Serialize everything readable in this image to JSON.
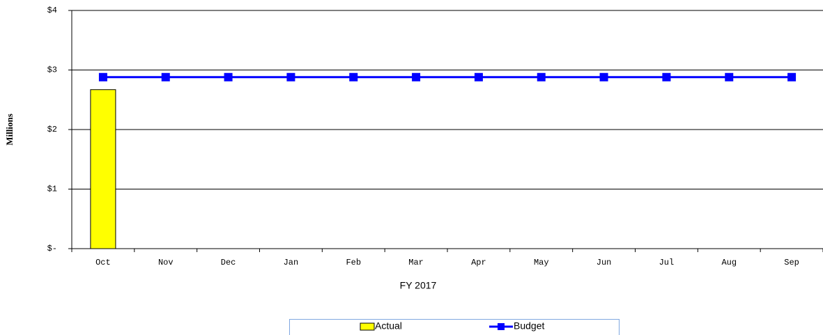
{
  "chart_data": {
    "type": "bar",
    "xlabel": "FY 2017",
    "ylabel": "Millions",
    "categories": [
      "Oct",
      "Nov",
      "Dec",
      "Jan",
      "Feb",
      "Mar",
      "Apr",
      "May",
      "Jun",
      "Jul",
      "Aug",
      "Sep"
    ],
    "series": [
      {
        "name": "Actual",
        "type": "bar",
        "color": "#ffff00",
        "values": [
          2.67,
          null,
          null,
          null,
          null,
          null,
          null,
          null,
          null,
          null,
          null,
          null
        ]
      },
      {
        "name": "Budget",
        "type": "line",
        "color": "#0000ff",
        "values": [
          2.88,
          2.88,
          2.88,
          2.88,
          2.88,
          2.88,
          2.88,
          2.88,
          2.88,
          2.88,
          2.88,
          2.88
        ]
      }
    ],
    "ylim": [
      0,
      4
    ],
    "yticks": [
      {
        "value": 0,
        "label": "$-"
      },
      {
        "value": 1,
        "label": "$1"
      },
      {
        "value": 2,
        "label": "$2"
      },
      {
        "value": 3,
        "label": "$3"
      },
      {
        "value": 4,
        "label": "$4"
      }
    ],
    "grid": true,
    "legend": "bottom"
  }
}
